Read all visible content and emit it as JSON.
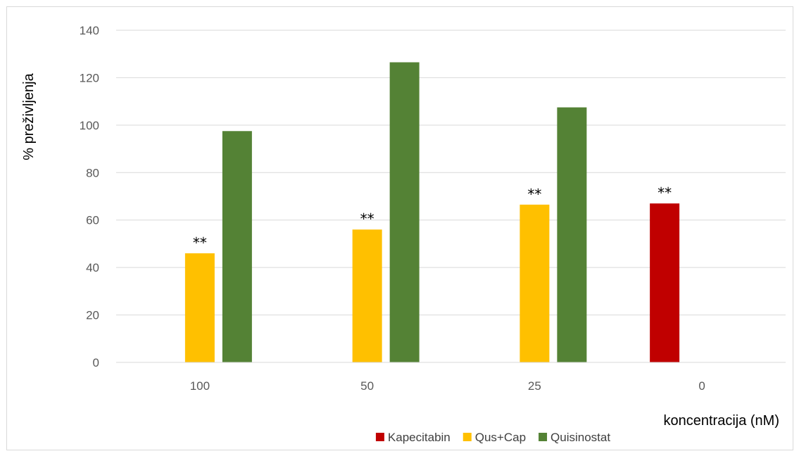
{
  "chart_data": {
    "type": "bar",
    "title": "",
    "xlabel": "koncentracija (nM)",
    "ylabel": "% preživljenja",
    "ylim": [
      0,
      140
    ],
    "yticks": [
      0,
      20,
      40,
      60,
      80,
      100,
      120,
      140
    ],
    "grid": true,
    "legend_position": "bottom",
    "categories": [
      "100",
      "50",
      "25",
      "0"
    ],
    "series": [
      {
        "name": "Kapecitabin",
        "color": "#C00000",
        "values": [
          null,
          null,
          null,
          67
        ],
        "labels": [
          "",
          "",
          "",
          "**"
        ]
      },
      {
        "name": "Qus+Cap",
        "color": "#FFC000",
        "values": [
          46,
          56,
          66.5,
          null
        ],
        "labels": [
          "**",
          "**",
          "**",
          ""
        ]
      },
      {
        "name": "Quisinostat",
        "color": "#548235",
        "values": [
          97.5,
          126.5,
          107.5,
          null
        ],
        "labels": [
          "",
          "",
          "",
          ""
        ]
      }
    ]
  }
}
